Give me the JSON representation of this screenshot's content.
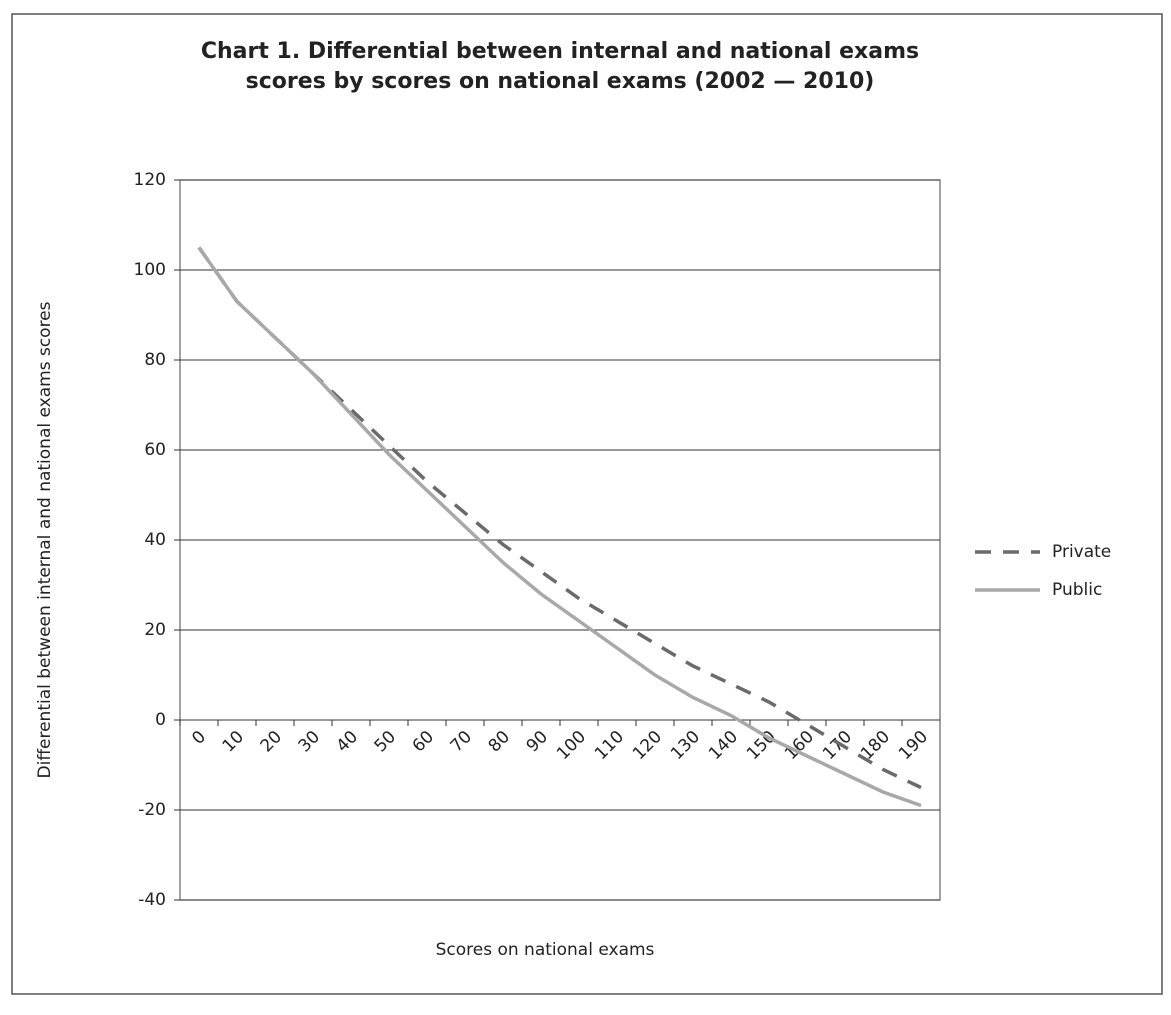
{
  "chart_data": {
    "type": "line",
    "title": [
      "Chart 1. Differential between internal and national exams",
      "scores by scores on national exams (2002 — 2010)"
    ],
    "x_label": "Scores on national exams",
    "y_label": "Differential between internal and national exams scores",
    "categories": [
      "0",
      "10",
      "20",
      "30",
      "40",
      "50",
      "60",
      "70",
      "80",
      "90",
      "100",
      "110",
      "120",
      "130",
      "140",
      "150",
      "160",
      "170",
      "180",
      "190"
    ],
    "series": [
      {
        "name": "Private",
        "color": "#6a6a6a",
        "dashed": true,
        "values": [
          105,
          93,
          85,
          77,
          69,
          61,
          53,
          46,
          39,
          33,
          27,
          22,
          17,
          12,
          8,
          4,
          -1,
          -6,
          -11,
          -15
        ]
      },
      {
        "name": "Public",
        "color": "#a8a8a8",
        "dashed": false,
        "values": [
          105,
          93,
          85,
          77,
          68,
          59,
          51,
          43,
          35,
          28,
          22,
          16,
          10,
          5,
          1,
          -4,
          -8,
          -12,
          -16,
          -19
        ]
      }
    ],
    "ylim": [
      -40,
      120
    ],
    "yticks": [
      -40,
      -20,
      0,
      20,
      40,
      60,
      80,
      100,
      120
    ],
    "grid": true,
    "legend": "right"
  }
}
